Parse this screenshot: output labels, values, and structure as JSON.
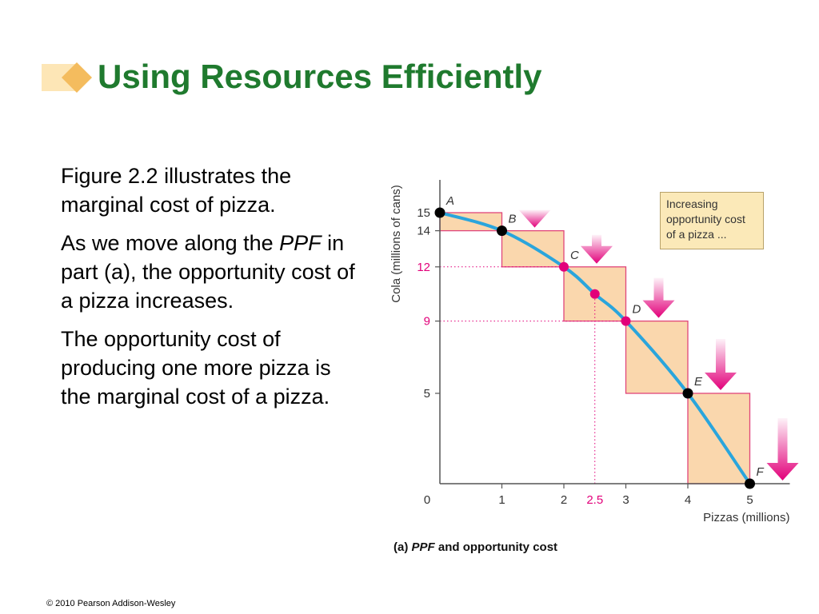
{
  "slide": {
    "title": "Using Resources Efficiently",
    "paragraph1": "Figure 2.2 illustrates the marginal cost of pizza.",
    "paragraph2_before": "As we move along the ",
    "paragraph2_em": "PPF",
    "paragraph2_after": " in part (a), the opportunity cost of a pizza increases.",
    "paragraph3": "The opportunity cost of producing one more pizza is the marginal cost of a pizza.",
    "copyright": "© 2010 Pearson Addison-Wesley"
  },
  "colors": {
    "title": "#1f7a2e",
    "curve": "#2aa5dc",
    "box_fill": "#fad7ad",
    "box_stroke": "#e0457a",
    "magenta": "#e2007a",
    "callout_fill": "#fbe9b8"
  },
  "chart_data": {
    "type": "line",
    "title": "",
    "caption_label": "(a)",
    "caption_em": "PPF",
    "caption_rest": "and opportunity cost",
    "xlabel": "Pizzas (millions)",
    "ylabel": "Cola (millions of cans)",
    "xlim": [
      0,
      5
    ],
    "ylim": [
      0,
      15
    ],
    "x_ticks": [
      {
        "value": 0,
        "label": "0"
      },
      {
        "value": 1,
        "label": "1"
      },
      {
        "value": 2,
        "label": "2"
      },
      {
        "value": 2.5,
        "label": "2.5",
        "highlight": true
      },
      {
        "value": 3,
        "label": "3"
      },
      {
        "value": 4,
        "label": "4"
      },
      {
        "value": 5,
        "label": "5"
      }
    ],
    "y_ticks": [
      {
        "value": 5,
        "label": "5"
      },
      {
        "value": 9,
        "label": "9",
        "highlight": true
      },
      {
        "value": 12,
        "label": "12",
        "highlight": true
      },
      {
        "value": 14,
        "label": "14"
      },
      {
        "value": 15,
        "label": "15"
      }
    ],
    "points": [
      {
        "label": "A",
        "x": 0,
        "y": 15,
        "color": "black"
      },
      {
        "label": "B",
        "x": 1,
        "y": 14,
        "color": "black"
      },
      {
        "label": "C",
        "x": 2,
        "y": 12,
        "color": "magenta"
      },
      {
        "label": "",
        "x": 2.5,
        "y": 10.5,
        "color": "magenta"
      },
      {
        "label": "D",
        "x": 3,
        "y": 9,
        "color": "magenta"
      },
      {
        "label": "E",
        "x": 4,
        "y": 5,
        "color": "black"
      },
      {
        "label": "F",
        "x": 5,
        "y": 0,
        "color": "black"
      }
    ],
    "annotation": {
      "text_lines": [
        "Increasing",
        "opportunity cost",
        "of a pizza ..."
      ]
    }
  }
}
